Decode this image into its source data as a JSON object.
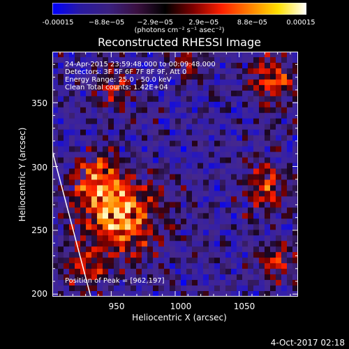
{
  "colorbar": {
    "tick_labels": [
      "-0.00015",
      "−8.8e−05",
      "−2.9e−05",
      "2.9e−05",
      "8.8e−05",
      "0.00015"
    ],
    "units": "(photons cm⁻² s⁻¹ asec⁻²)",
    "colors": [
      "#0000ff",
      "#2a1aa0",
      "#3a2080",
      "#3a1040",
      "#000000",
      "#800000",
      "#ff2000",
      "#ff8000",
      "#ffe000",
      "#ffffff"
    ]
  },
  "chart_data": {
    "type": "heatmap",
    "title": "Reconstructed RHESSI Image",
    "xlabel": "Heliocentric X (arcsec)",
    "ylabel": "Heliocentric Y (arcsec)",
    "xlim": [
      904,
      1096
    ],
    "ylim": [
      198,
      390
    ],
    "x_ticks": [
      "950",
      "1000",
      "1050"
    ],
    "y_ticks": [
      "200",
      "250",
      "300",
      "350"
    ],
    "annotations": [
      "24-Apr-2015 23:59:48.000 to 00:09:48.000",
      "Detectors: 3F 5F 6F 7F 8F 9F, Att 0",
      "Energy Range: 25.0 - 50.0 keV",
      "Clean    Total counts: 1.42E+04"
    ],
    "peak_label": "Position of Peak = [962,197]",
    "peak": [
      962,
      197
    ],
    "limb_line": [
      [
        904,
        312
      ],
      [
        934,
        198
      ]
    ]
  },
  "footer": {
    "timestamp": "4-Oct-2017 02:18"
  }
}
